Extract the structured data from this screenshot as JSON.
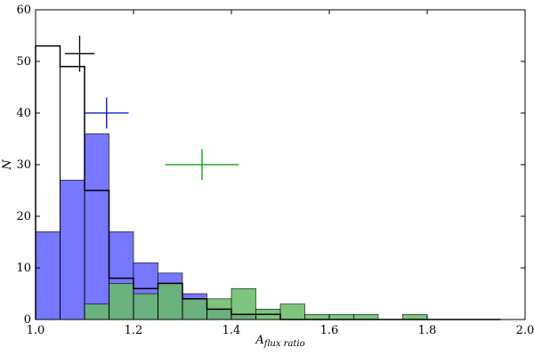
{
  "chart_data": {
    "type": "bar",
    "xlabel": "A",
    "xlabel_subscript": "flux ratio",
    "ylabel": "N",
    "xlim": [
      1.0,
      2.0
    ],
    "ylim": [
      0,
      60
    ],
    "grid": false,
    "x_ticks": [
      1.0,
      1.2,
      1.4,
      1.6,
      1.8,
      2.0
    ],
    "x_tick_labels": [
      "1.0",
      "1.2",
      "1.4",
      "1.6",
      "1.8",
      "2.0"
    ],
    "y_ticks": [
      0,
      10,
      20,
      30,
      40,
      50,
      60
    ],
    "y_tick_labels": [
      "0",
      "10",
      "20",
      "30",
      "40",
      "50",
      "60"
    ],
    "bin_width": 0.05,
    "series": [
      {
        "kind": "filled",
        "color": "#7777ff",
        "edge": "#000000",
        "bins": [
          1.0,
          1.05,
          1.1,
          1.15,
          1.2,
          1.25,
          1.3,
          1.35,
          1.4
        ],
        "values": [
          17,
          27,
          36,
          17,
          11,
          9,
          5,
          2,
          1
        ]
      },
      {
        "kind": "filled",
        "color": "#66bb66",
        "edge": "#000000",
        "bins": [
          1.1,
          1.15,
          1.2,
          1.25,
          1.3,
          1.35,
          1.4,
          1.45,
          1.5,
          1.55,
          1.6,
          1.65,
          1.75
        ],
        "values": [
          3,
          7,
          5,
          7,
          4,
          4,
          6,
          2,
          3,
          1,
          1,
          1,
          1
        ]
      },
      {
        "kind": "outline",
        "color": "#000000",
        "bins": [
          1.0,
          1.05,
          1.1,
          1.15,
          1.2,
          1.25,
          1.3,
          1.35,
          1.4,
          1.45,
          1.5,
          1.55,
          1.6,
          1.65,
          1.7,
          1.75,
          1.8,
          1.85,
          1.9
        ],
        "values": [
          53,
          49,
          25,
          8,
          6,
          7,
          4,
          2,
          1,
          1,
          0,
          0,
          0,
          0,
          0,
          0,
          0,
          0,
          0
        ]
      }
    ],
    "error_crosses": [
      {
        "color": "#000000",
        "x": 1.09,
        "y": 51.5,
        "xerr": 0.03,
        "yerr": 3.5
      },
      {
        "color": "#0000cc",
        "x": 1.145,
        "y": 40,
        "xerr": 0.045,
        "yerr": 3
      },
      {
        "color": "#009900",
        "x": 1.34,
        "y": 30,
        "xerr": 0.075,
        "yerr": 3
      }
    ]
  }
}
